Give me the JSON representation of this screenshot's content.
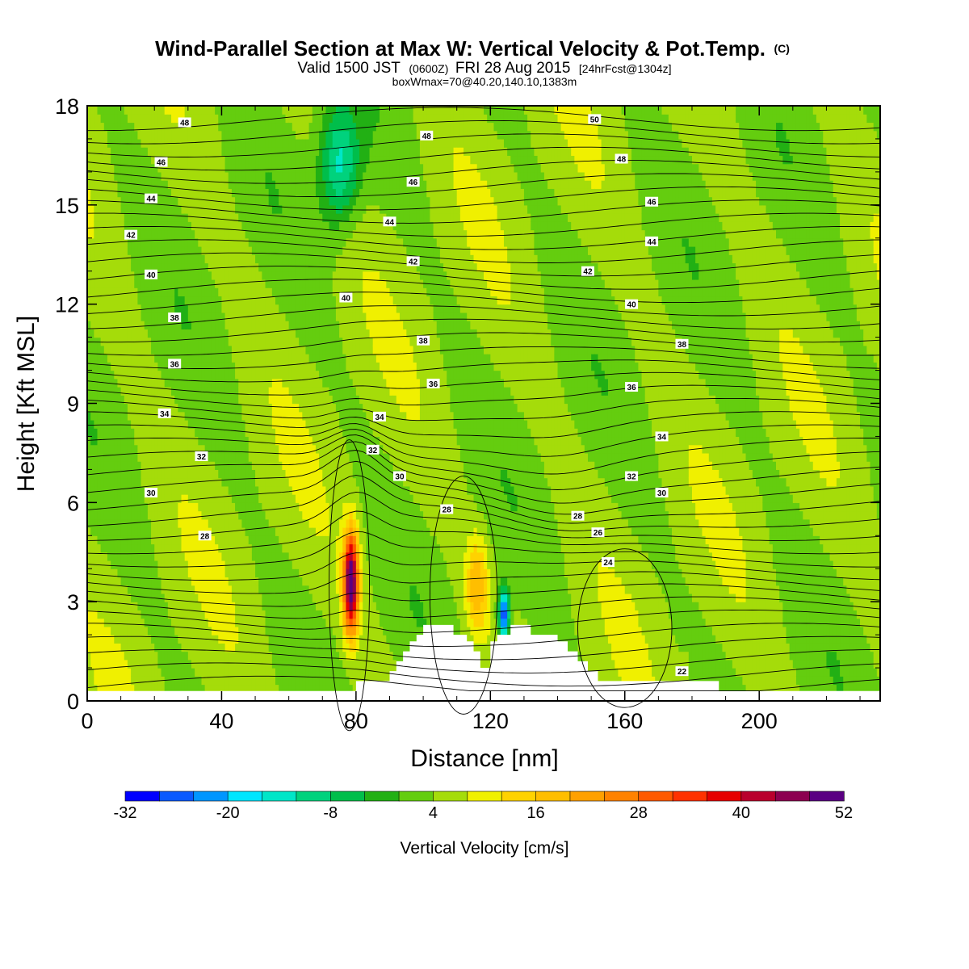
{
  "chart_data": {
    "type": "heatmap",
    "title": "Wind-Parallel Section at Max W: Vertical Velocity & Pot.Temp.",
    "title_marker": "(C)",
    "subtitle_parts": [
      "Valid 1500 JST",
      "(0600Z)",
      "FRI 28 Aug 2015",
      "[24hrFcst@1304z]"
    ],
    "subtitle2": "boxWmax=70@40.20,140.10,1383m",
    "xlabel": "Distance [nm]",
    "ylabel": "Height [Kft MSL]",
    "xlim": [
      0,
      236
    ],
    "ylim": [
      0,
      18
    ],
    "x_ticks": [
      "0",
      "40",
      "80",
      "120",
      "160",
      "200"
    ],
    "y_ticks": [
      "0",
      "3",
      "6",
      "9",
      "12",
      "15",
      "18"
    ],
    "grid": false,
    "colorbar": {
      "label": "Vertical Velocity [cm/s]",
      "tick_labels": [
        "-32",
        "-20",
        "-8",
        "4",
        "16",
        "28",
        "40",
        "52"
      ],
      "levels": [
        -32,
        -28,
        -24,
        -20,
        -16,
        -12,
        -8,
        -4,
        0,
        4,
        8,
        12,
        16,
        20,
        24,
        28,
        32,
        36,
        40,
        44,
        48,
        52
      ],
      "colors": [
        "#0000ff",
        "#0a5aff",
        "#0096ff",
        "#00e6ff",
        "#00e6c8",
        "#00d27d",
        "#00be4b",
        "#22b014",
        "#64cd0f",
        "#a5dc0a",
        "#f0f000",
        "#ffd200",
        "#ffbe00",
        "#ffa000",
        "#ff8200",
        "#ff5a00",
        "#ff3200",
        "#e60000",
        "#b9002d",
        "#8c0050",
        "#5a0082"
      ]
    },
    "theta_contour_labels": [
      {
        "x": 29,
        "y": 17.5,
        "label": "48"
      },
      {
        "x": 101,
        "y": 17.1,
        "label": "48"
      },
      {
        "x": 151,
        "y": 17.6,
        "label": "50"
      },
      {
        "x": 22,
        "y": 16.3,
        "label": "46"
      },
      {
        "x": 159,
        "y": 16.4,
        "label": "48"
      },
      {
        "x": 19,
        "y": 15.2,
        "label": "44"
      },
      {
        "x": 97,
        "y": 15.7,
        "label": "46"
      },
      {
        "x": 168,
        "y": 15.1,
        "label": "46"
      },
      {
        "x": 13,
        "y": 14.1,
        "label": "42"
      },
      {
        "x": 90,
        "y": 14.5,
        "label": "44"
      },
      {
        "x": 168,
        "y": 13.9,
        "label": "44"
      },
      {
        "x": 19,
        "y": 12.9,
        "label": "40"
      },
      {
        "x": 97,
        "y": 13.3,
        "label": "42"
      },
      {
        "x": 149,
        "y": 13.0,
        "label": "42"
      },
      {
        "x": 26,
        "y": 11.6,
        "label": "38"
      },
      {
        "x": 77,
        "y": 12.2,
        "label": "40"
      },
      {
        "x": 162,
        "y": 12.0,
        "label": "40"
      },
      {
        "x": 100,
        "y": 10.9,
        "label": "38"
      },
      {
        "x": 177,
        "y": 10.8,
        "label": "38"
      },
      {
        "x": 26,
        "y": 10.2,
        "label": "36"
      },
      {
        "x": 103,
        "y": 9.6,
        "label": "36"
      },
      {
        "x": 162,
        "y": 9.5,
        "label": "36"
      },
      {
        "x": 23,
        "y": 8.7,
        "label": "34"
      },
      {
        "x": 87,
        "y": 8.6,
        "label": "34"
      },
      {
        "x": 171,
        "y": 8.0,
        "label": "34"
      },
      {
        "x": 34,
        "y": 7.4,
        "label": "32"
      },
      {
        "x": 85,
        "y": 7.6,
        "label": "32"
      },
      {
        "x": 93,
        "y": 6.8,
        "label": "30"
      },
      {
        "x": 162,
        "y": 6.8,
        "label": "32"
      },
      {
        "x": 19,
        "y": 6.3,
        "label": "30"
      },
      {
        "x": 171,
        "y": 6.3,
        "label": "30"
      },
      {
        "x": 107,
        "y": 5.8,
        "label": "28"
      },
      {
        "x": 146,
        "y": 5.6,
        "label": "28"
      },
      {
        "x": 35,
        "y": 5.0,
        "label": "28"
      },
      {
        "x": 152,
        "y": 5.1,
        "label": "26"
      },
      {
        "x": 155,
        "y": 4.2,
        "label": "24"
      },
      {
        "x": 177,
        "y": 0.9,
        "label": "22"
      }
    ],
    "terrain_profile": [
      [
        80,
        0.6
      ],
      [
        90,
        0.6
      ],
      [
        90,
        0.9
      ],
      [
        92,
        0.9
      ],
      [
        92,
        1.2
      ],
      [
        94,
        1.2
      ],
      [
        94,
        1.5
      ],
      [
        96,
        1.5
      ],
      [
        96,
        1.8
      ],
      [
        98,
        1.8
      ],
      [
        98,
        2.0
      ],
      [
        100,
        2.0
      ],
      [
        100,
        2.3
      ],
      [
        109,
        2.3
      ],
      [
        109,
        2.0
      ],
      [
        113,
        2.0
      ],
      [
        113,
        1.8
      ],
      [
        115,
        1.8
      ],
      [
        115,
        1.5
      ],
      [
        117,
        1.5
      ],
      [
        117,
        1.0
      ],
      [
        120,
        1.0
      ],
      [
        120,
        1.8
      ],
      [
        122,
        1.8
      ],
      [
        122,
        2.0
      ],
      [
        126,
        2.0
      ],
      [
        126,
        2.3
      ],
      [
        132,
        2.3
      ],
      [
        132,
        2.0
      ],
      [
        140,
        2.0
      ],
      [
        140,
        1.8
      ],
      [
        143,
        1.8
      ],
      [
        143,
        1.5
      ],
      [
        146,
        1.5
      ],
      [
        146,
        1.2
      ],
      [
        149,
        1.2
      ],
      [
        149,
        0.9
      ],
      [
        152,
        0.9
      ],
      [
        152,
        0.6
      ],
      [
        188,
        0.6
      ],
      [
        188,
        0.3
      ]
    ],
    "w_features": [
      {
        "x": 78.5,
        "y": 3.6,
        "peak_w": 52,
        "shape": "updraft core"
      },
      {
        "x": 116,
        "y": 3.5,
        "peak_w": 18,
        "shape": "updraft"
      },
      {
        "x": 124,
        "y": 2.6,
        "peak_w": -30,
        "shape": "downdraft"
      },
      {
        "x": 75,
        "y": 16.2,
        "peak_w": -14,
        "shape": "downdraft"
      },
      {
        "x": 178,
        "y": 1.0,
        "peak_w": 6,
        "shape": "updraft"
      }
    ]
  }
}
